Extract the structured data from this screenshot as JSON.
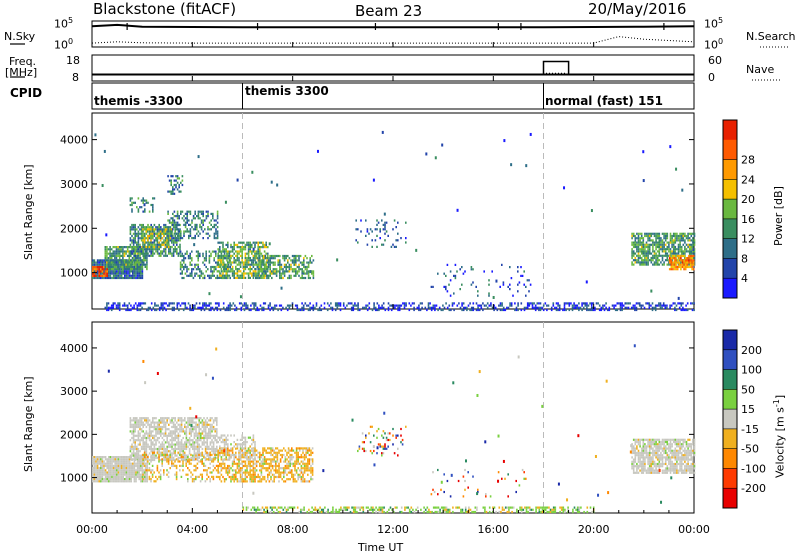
{
  "header": {
    "station": "Blackstone (fitACF)",
    "beam": "Beam 23",
    "date": "20/May/2016"
  },
  "top_panel_labels": {
    "nsky": "N.Sky",
    "nsearch": "N.Search",
    "freq": "Freq.",
    "freq_unit": "[MHz]",
    "nave": "Nave",
    "cpid": "CPID",
    "noise_tick_high": "10^5",
    "noise_tick_low": "10^0",
    "freq_tick_high": "18",
    "freq_tick_low": "8",
    "nave_tick_high": "60",
    "nave_tick_low": "0"
  },
  "colors": {
    "power_scale": [
      "#1a1aff",
      "#2244aa",
      "#2e6e88",
      "#3a8e60",
      "#6ab840",
      "#f5c000",
      "#ff9a00",
      "#ff5a00",
      "#e82000"
    ],
    "velocity_scale": [
      "#1a2aa8",
      "#3050c0",
      "#2a8a60",
      "#7ad040",
      "#c8c8c0",
      "#f0b020",
      "#ff8800",
      "#ff3a00",
      "#e80000"
    ]
  },
  "chart_data": [
    {
      "type": "line",
      "panel": "noise",
      "series": [
        {
          "name": "N.Sky",
          "x_hours": [
            0,
            1,
            2,
            4,
            6,
            8,
            10,
            12,
            14,
            16,
            18,
            20,
            22,
            24
          ],
          "level": [
            0.8,
            0.85,
            0.78,
            0.77,
            0.76,
            0.76,
            0.76,
            0.76,
            0.76,
            0.76,
            0.76,
            0.77,
            0.78,
            0.8
          ]
        },
        {
          "name": "N.Search",
          "x_hours": [
            0,
            1,
            2,
            4,
            6,
            8,
            10,
            12,
            14,
            16,
            18,
            20,
            21,
            22,
            24
          ],
          "level": [
            0.15,
            0.2,
            0.16,
            0.15,
            0.15,
            0.15,
            0.15,
            0.15,
            0.15,
            0.15,
            0.15,
            0.15,
            0.4,
            0.3,
            0.2
          ]
        }
      ]
    },
    {
      "type": "line",
      "panel": "frequency_nave",
      "series": [
        {
          "name": "Freq.",
          "x_hours": [
            0,
            24
          ],
          "values": [
            10.5,
            10.5
          ]
        },
        {
          "name": "Nave",
          "x_hours": [
            0,
            18,
            18,
            19,
            19,
            24
          ],
          "values": [
            15,
            15,
            45,
            45,
            15,
            15
          ]
        }
      ]
    },
    {
      "type": "table",
      "panel": "cpid",
      "segments": [
        {
          "start_hour": 0,
          "label": "themis -3300"
        },
        {
          "start_hour": 6,
          "label": "themis 3300"
        },
        {
          "start_hour": 18,
          "label": "normal (fast) 151"
        }
      ]
    },
    {
      "type": "heatmap",
      "panel": "power",
      "xlabel": "",
      "ylabel": "Slant Range [km]",
      "colorbar_label": "Power [dB]",
      "colorbar_ticks": [
        "4",
        "8",
        "12",
        "16",
        "20",
        "24",
        "28"
      ],
      "xlim": [
        0,
        24
      ],
      "ylim": [
        180,
        4600
      ],
      "yticks": [
        "1000",
        "2000",
        "3000",
        "4000"
      ],
      "blobs": [
        {
          "x0": 0,
          "x1": 2.0,
          "r0": 900,
          "r1": 1300,
          "level": 0.25,
          "density": 0.95
        },
        {
          "x0": 0,
          "x1": 0.6,
          "r0": 950,
          "r1": 1150,
          "level": 0.85,
          "density": 0.9
        },
        {
          "x0": 0.5,
          "x1": 2.2,
          "r0": 1100,
          "r1": 1600,
          "level": 0.4,
          "density": 0.8
        },
        {
          "x0": 1.5,
          "x1": 3.5,
          "r0": 1400,
          "r1": 2100,
          "level": 0.35,
          "density": 0.7
        },
        {
          "x0": 2.0,
          "x1": 3.2,
          "r0": 1600,
          "r1": 2000,
          "level": 0.5,
          "density": 0.6
        },
        {
          "x0": 3.0,
          "x1": 5.0,
          "r0": 1800,
          "r1": 2400,
          "level": 0.3,
          "density": 0.45
        },
        {
          "x0": 1.5,
          "x1": 2.5,
          "r0": 2400,
          "r1": 2700,
          "level": 0.35,
          "density": 0.35
        },
        {
          "x0": 3.0,
          "x1": 3.6,
          "r0": 2800,
          "r1": 3200,
          "level": 0.3,
          "density": 0.3
        },
        {
          "x0": 3.5,
          "x1": 5.5,
          "r0": 900,
          "r1": 1500,
          "level": 0.35,
          "density": 0.45
        },
        {
          "x0": 5.0,
          "x1": 7.0,
          "r0": 900,
          "r1": 1700,
          "level": 0.45,
          "density": 0.65
        },
        {
          "x0": 6.5,
          "x1": 8.8,
          "r0": 900,
          "r1": 1400,
          "level": 0.4,
          "density": 0.6
        },
        {
          "x0": 10.5,
          "x1": 12.5,
          "r0": 1600,
          "r1": 2200,
          "level": 0.25,
          "density": 0.12
        },
        {
          "x0": 13.5,
          "x1": 17.5,
          "r0": 500,
          "r1": 1200,
          "level": 0.2,
          "density": 0.06
        },
        {
          "x0": 0.5,
          "x1": 24,
          "r0": 180,
          "r1": 330,
          "level": 0.15,
          "density": 0.45
        },
        {
          "x0": 21.5,
          "x1": 24,
          "r0": 1200,
          "r1": 1900,
          "level": 0.4,
          "density": 0.75
        },
        {
          "x0": 23,
          "x1": 24,
          "r0": 1100,
          "r1": 1400,
          "level": 0.75,
          "density": 0.8
        }
      ]
    },
    {
      "type": "heatmap",
      "panel": "velocity",
      "xlabel": "Time UT",
      "ylabel": "Slant Range [km]",
      "colorbar_label": "Velocity [m s^-1]",
      "colorbar_ticks": [
        "200",
        "100",
        "50",
        "15",
        "-15",
        "-50",
        "-100",
        "-200"
      ],
      "xlim": [
        0,
        24
      ],
      "ylim": [
        180,
        4600
      ],
      "yticks": [
        "1000",
        "2000",
        "3000",
        "4000"
      ],
      "xticks": [
        "00:00",
        "04:00",
        "08:00",
        "12:00",
        "16:00",
        "20:00",
        "00:00"
      ],
      "blobs": [
        {
          "x0": 0,
          "x1": 2.2,
          "r0": 900,
          "r1": 1500,
          "class": "ground",
          "density": 0.95
        },
        {
          "x0": 1.5,
          "x1": 5.0,
          "r0": 1400,
          "r1": 2400,
          "class": "ground",
          "density": 0.7
        },
        {
          "x0": 2.0,
          "x1": 5.0,
          "r0": 900,
          "r1": 1600,
          "class": "neg",
          "density": 0.3
        },
        {
          "x0": 5.0,
          "x1": 8.8,
          "r0": 900,
          "r1": 1700,
          "class": "neg",
          "density": 0.6
        },
        {
          "x0": 5.0,
          "x1": 6.5,
          "r0": 1400,
          "r1": 2000,
          "class": "ground",
          "density": 0.4
        },
        {
          "x0": 10.5,
          "x1": 12.5,
          "r0": 1500,
          "r1": 2200,
          "class": "mixed",
          "density": 0.12
        },
        {
          "x0": 6.0,
          "x1": 20.0,
          "r0": 180,
          "r1": 330,
          "class": "pos",
          "density": 0.45
        },
        {
          "x0": 13.5,
          "x1": 17.5,
          "r0": 500,
          "r1": 1200,
          "class": "mixed",
          "density": 0.05
        },
        {
          "x0": 21.5,
          "x1": 24,
          "r0": 1100,
          "r1": 1900,
          "class": "ground",
          "density": 0.8
        }
      ]
    }
  ],
  "axes": {
    "time_label": "Time UT",
    "range_label": "Slant Range [km]",
    "power_label": "Power [dB]",
    "velocity_label": "Velocity [m s",
    "velocity_label_sup": "-1",
    "velocity_label_end": "]"
  }
}
